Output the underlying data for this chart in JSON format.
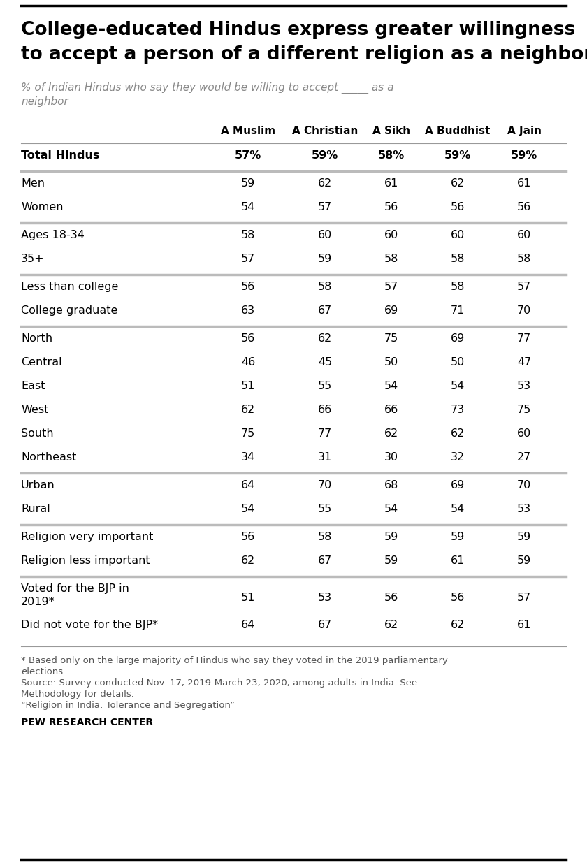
{
  "title_line1": "College-educated Hindus express greater willingness",
  "title_line2": "to accept a person of a different religion as a neighbor",
  "subtitle_line1": "% of Indian Hindus who say they would be willing to accept _____ as a",
  "subtitle_line2": "neighbor",
  "col_headers": [
    "A Muslim",
    "A Christian",
    "A Sikh",
    "A Buddhist",
    "A Jain"
  ],
  "rows": [
    {
      "label": "Total Hindus",
      "values": [
        "57%",
        "59%",
        "58%",
        "59%",
        "59%"
      ],
      "bold": false,
      "separator_below": true,
      "two_line": false,
      "header_row": true
    },
    {
      "label": "Men",
      "values": [
        "59",
        "62",
        "61",
        "62",
        "61"
      ],
      "bold": false,
      "separator_below": false,
      "two_line": false,
      "header_row": false
    },
    {
      "label": "Women",
      "values": [
        "54",
        "57",
        "56",
        "56",
        "56"
      ],
      "bold": false,
      "separator_below": true,
      "two_line": false,
      "header_row": false
    },
    {
      "label": "Ages 18-34",
      "values": [
        "58",
        "60",
        "60",
        "60",
        "60"
      ],
      "bold": false,
      "separator_below": false,
      "two_line": false,
      "header_row": false
    },
    {
      "label": "35+",
      "values": [
        "57",
        "59",
        "58",
        "58",
        "58"
      ],
      "bold": false,
      "separator_below": true,
      "two_line": false,
      "header_row": false
    },
    {
      "label": "Less than college",
      "values": [
        "56",
        "58",
        "57",
        "58",
        "57"
      ],
      "bold": false,
      "separator_below": false,
      "two_line": false,
      "header_row": false
    },
    {
      "label": "College graduate",
      "values": [
        "63",
        "67",
        "69",
        "71",
        "70"
      ],
      "bold": false,
      "separator_below": true,
      "two_line": false,
      "header_row": false
    },
    {
      "label": "North",
      "values": [
        "56",
        "62",
        "75",
        "69",
        "77"
      ],
      "bold": false,
      "separator_below": false,
      "two_line": false,
      "header_row": false
    },
    {
      "label": "Central",
      "values": [
        "46",
        "45",
        "50",
        "50",
        "47"
      ],
      "bold": false,
      "separator_below": false,
      "two_line": false,
      "header_row": false
    },
    {
      "label": "East",
      "values": [
        "51",
        "55",
        "54",
        "54",
        "53"
      ],
      "bold": false,
      "separator_below": false,
      "two_line": false,
      "header_row": false
    },
    {
      "label": "West",
      "values": [
        "62",
        "66",
        "66",
        "73",
        "75"
      ],
      "bold": false,
      "separator_below": false,
      "two_line": false,
      "header_row": false
    },
    {
      "label": "South",
      "values": [
        "75",
        "77",
        "62",
        "62",
        "60"
      ],
      "bold": false,
      "separator_below": false,
      "two_line": false,
      "header_row": false
    },
    {
      "label": "Northeast",
      "values": [
        "34",
        "31",
        "30",
        "32",
        "27"
      ],
      "bold": false,
      "separator_below": true,
      "two_line": false,
      "header_row": false
    },
    {
      "label": "Urban",
      "values": [
        "64",
        "70",
        "68",
        "69",
        "70"
      ],
      "bold": false,
      "separator_below": false,
      "two_line": false,
      "header_row": false
    },
    {
      "label": "Rural",
      "values": [
        "54",
        "55",
        "54",
        "54",
        "53"
      ],
      "bold": false,
      "separator_below": true,
      "two_line": false,
      "header_row": false
    },
    {
      "label": "Religion very important",
      "values": [
        "56",
        "58",
        "59",
        "59",
        "59"
      ],
      "bold": false,
      "separator_below": false,
      "two_line": false,
      "header_row": false
    },
    {
      "label": "Religion less important",
      "values": [
        "62",
        "67",
        "59",
        "61",
        "59"
      ],
      "bold": false,
      "separator_below": true,
      "two_line": false,
      "header_row": false
    },
    {
      "label": "Voted for the BJP in\n2019*",
      "values": [
        "51",
        "53",
        "56",
        "56",
        "57"
      ],
      "bold": false,
      "separator_below": false,
      "two_line": true,
      "header_row": false
    },
    {
      "label": "Did not vote for the BJP*",
      "values": [
        "64",
        "67",
        "62",
        "62",
        "61"
      ],
      "bold": false,
      "separator_below": false,
      "two_line": false,
      "header_row": false
    }
  ],
  "footnotes": [
    "* Based only on the large majority of Hindus who say they voted in the 2019 parliamentary elections.",
    "Source: Survey conducted Nov. 17, 2019-March 23, 2020, among adults in India. See Methodology for details.",
    "“Religion in India: Tolerance and Segregation”"
  ],
  "pew_credit": "PEW RESEARCH CENTER",
  "bg_color": "#ffffff",
  "text_color": "#000000",
  "subtitle_color": "#888888",
  "footnote_color": "#555555",
  "separator_thick_color": "#bbbbbb",
  "separator_thin_color": "#999999"
}
